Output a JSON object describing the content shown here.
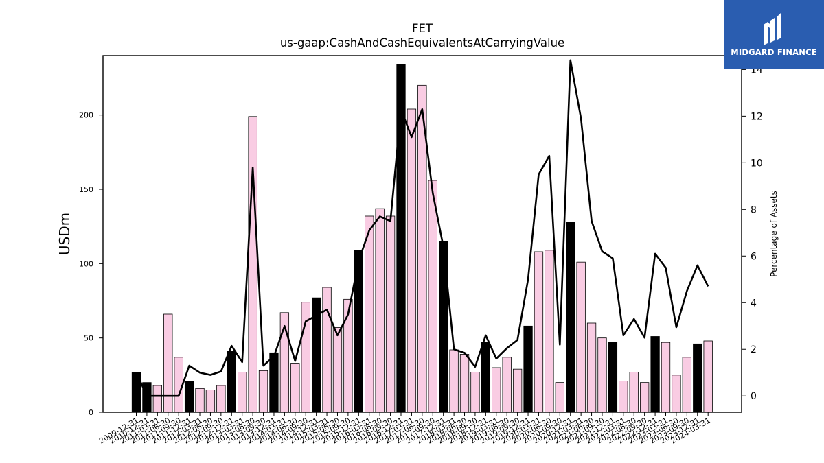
{
  "chart_data": {
    "type": "bar",
    "title": "FET",
    "subtitle": "us-gaap:CashAndCashEquivalentsAtCarryingValue",
    "ylabel": "USDm",
    "y2label": "Percentage of Assets",
    "ylim": [
      0,
      240
    ],
    "y2lim": [
      -0.7,
      14.6
    ],
    "yticks": [
      0,
      50,
      100,
      150,
      200
    ],
    "y2ticks": [
      0,
      2,
      4,
      6,
      8,
      10,
      12,
      14
    ],
    "grid": false,
    "colors": {
      "annual_bar": "#000000",
      "quarter_bar": "#f9cce3",
      "bar_edge": "#000000",
      "line": "#000000"
    },
    "categories": [
      "2009-12-31",
      "2010-12-31",
      "2011-03-31",
      "2011-06-30",
      "2011-09-30",
      "2011-12-31",
      "2012-03-31",
      "2012-06-30",
      "2012-09-30",
      "2012-12-31",
      "2013-03-31",
      "2013-06-30",
      "2013-09-30",
      "2013-12-31",
      "2014-03-31",
      "2014-06-30",
      "2014-09-30",
      "2014-12-31",
      "2015-03-31",
      "2015-06-30",
      "2015-09-30",
      "2015-12-31",
      "2016-03-31",
      "2016-06-30",
      "2016-09-30",
      "2016-12-31",
      "2017-03-31",
      "2017-06-30",
      "2017-09-30",
      "2017-12-31",
      "2018-03-31",
      "2018-06-30",
      "2018-09-30",
      "2018-12-31",
      "2019-03-31",
      "2019-06-30",
      "2019-09-30",
      "2019-12-31",
      "2020-03-31",
      "2020-06-30",
      "2020-09-30",
      "2020-12-31",
      "2021-03-31",
      "2021-06-30",
      "2021-09-30",
      "2021-12-31",
      "2022-03-31",
      "2022-06-30",
      "2022-09-30",
      "2022-12-31",
      "2023-03-31",
      "2023-06-30",
      "2023-09-30",
      "2023-12-31",
      "2024-03-31"
    ],
    "annual": [
      true,
      true,
      false,
      false,
      false,
      true,
      false,
      false,
      false,
      true,
      false,
      false,
      false,
      true,
      false,
      false,
      false,
      true,
      false,
      false,
      false,
      true,
      false,
      false,
      false,
      true,
      false,
      false,
      false,
      true,
      false,
      false,
      false,
      true,
      false,
      false,
      false,
      true,
      false,
      false,
      false,
      true,
      false,
      false,
      false,
      true,
      false,
      false,
      false,
      true,
      false,
      false,
      false,
      true,
      false
    ],
    "series": [
      {
        "name": "USDm",
        "kind": "bar",
        "values": [
          27,
          20,
          18,
          66,
          37,
          21,
          16,
          15,
          18,
          41,
          27,
          199,
          28,
          40,
          67,
          33,
          74,
          77,
          84,
          57,
          76,
          109,
          132,
          137,
          132,
          234,
          204,
          220,
          156,
          115,
          42,
          39,
          27,
          47,
          30,
          37,
          29,
          58,
          108,
          109,
          20,
          128,
          101,
          60,
          50,
          47,
          21,
          27,
          20,
          51,
          47,
          25,
          37,
          46,
          48
        ]
      },
      {
        "name": "Percentage of Assets",
        "kind": "line",
        "values": [
          1.0,
          0.0,
          0.0,
          0.0,
          0.0,
          1.3,
          1.0,
          0.9,
          1.05,
          2.15,
          1.45,
          9.8,
          1.3,
          1.7,
          3.0,
          1.5,
          3.2,
          3.45,
          3.7,
          2.6,
          3.5,
          5.8,
          7.1,
          7.7,
          7.5,
          12.3,
          11.1,
          12.3,
          8.7,
          6.4,
          2.0,
          1.85,
          1.25,
          2.6,
          1.6,
          2.05,
          2.4,
          5.0,
          9.5,
          10.3,
          2.2,
          14.4,
          11.9,
          7.5,
          6.2,
          5.9,
          2.6,
          3.3,
          2.5,
          6.1,
          5.5,
          2.95,
          4.5,
          5.6,
          4.7
        ]
      }
    ]
  },
  "logo": {
    "text": "MIDGARD FINANCE"
  }
}
